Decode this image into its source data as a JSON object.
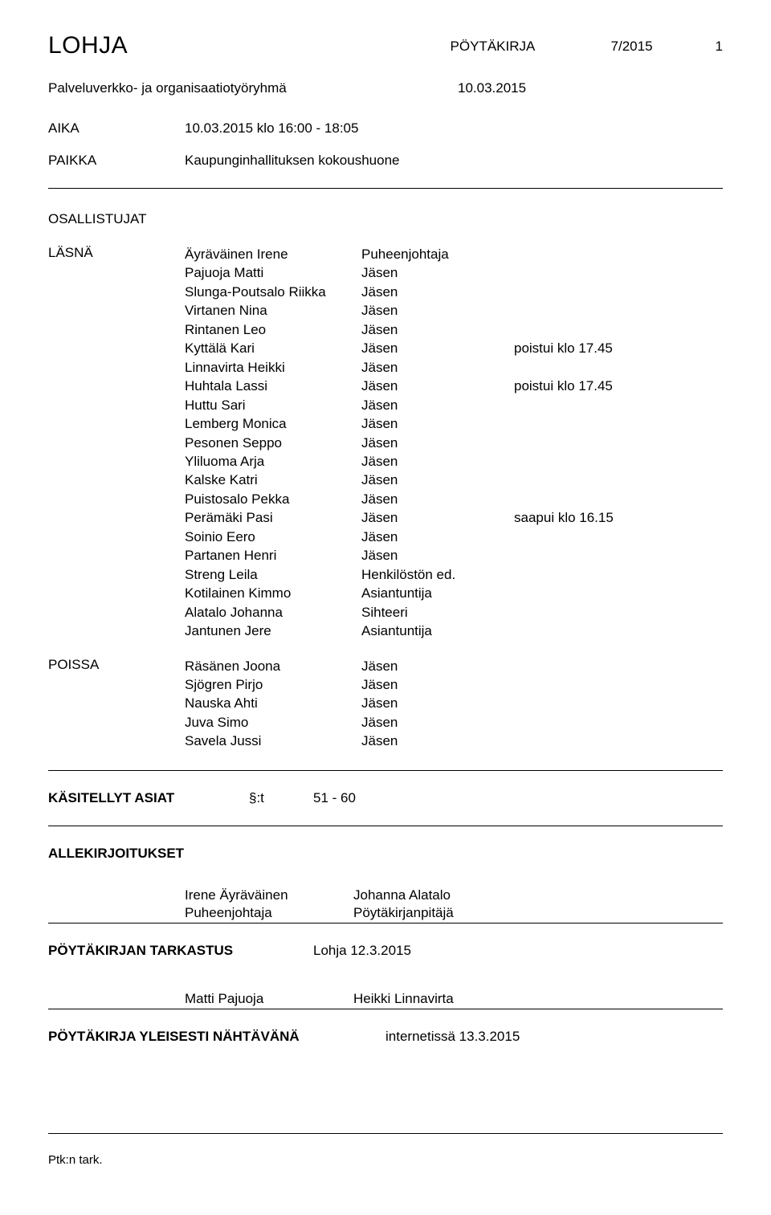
{
  "header": {
    "org": "LOHJA",
    "doc_type": "PÖYTÄKIRJA",
    "doc_number": "7/2015",
    "page": "1"
  },
  "sub": {
    "group": "Palveluverkko- ja organisaatiotyöryhmä",
    "group_date": "10.03.2015"
  },
  "meta": {
    "aika_label": "AIKA",
    "aika_value": "10.03.2015 klo 16:00 - 18:05",
    "paikka_label": "PAIKKA",
    "paikka_value": "Kaupunginhallituksen kokoushuone"
  },
  "participants_heading": "OSALLISTUJAT",
  "present": {
    "label": "LÄSNÄ",
    "rows": [
      {
        "name": "Äyräväinen Irene",
        "role": "Puheenjohtaja",
        "note": ""
      },
      {
        "name": "Pajuoja Matti",
        "role": "Jäsen",
        "note": ""
      },
      {
        "name": "Slunga-Poutsalo Riikka",
        "role": "Jäsen",
        "note": ""
      },
      {
        "name": "Virtanen Nina",
        "role": "Jäsen",
        "note": ""
      },
      {
        "name": "Rintanen Leo",
        "role": "Jäsen",
        "note": ""
      },
      {
        "name": "Kyttälä Kari",
        "role": "Jäsen",
        "note": "poistui klo 17.45"
      },
      {
        "name": "Linnavirta Heikki",
        "role": "Jäsen",
        "note": ""
      },
      {
        "name": "Huhtala Lassi",
        "role": "Jäsen",
        "note": "poistui klo 17.45"
      },
      {
        "name": "Huttu Sari",
        "role": "Jäsen",
        "note": ""
      },
      {
        "name": "Lemberg Monica",
        "role": "Jäsen",
        "note": ""
      },
      {
        "name": "Pesonen Seppo",
        "role": "Jäsen",
        "note": ""
      },
      {
        "name": "Yliluoma Arja",
        "role": "Jäsen",
        "note": ""
      },
      {
        "name": "Kalske Katri",
        "role": "Jäsen",
        "note": ""
      },
      {
        "name": "Puistosalo Pekka",
        "role": "Jäsen",
        "note": ""
      },
      {
        "name": "Perämäki Pasi",
        "role": "Jäsen",
        "note": "saapui klo 16.15"
      },
      {
        "name": "Soinio Eero",
        "role": "Jäsen",
        "note": ""
      },
      {
        "name": "Partanen Henri",
        "role": "Jäsen",
        "note": ""
      },
      {
        "name": "Streng Leila",
        "role": "Henkilöstön ed.",
        "note": ""
      },
      {
        "name": "Kotilainen Kimmo",
        "role": "Asiantuntija",
        "note": ""
      },
      {
        "name": "Alatalo Johanna",
        "role": "Sihteeri",
        "note": ""
      },
      {
        "name": "Jantunen Jere",
        "role": "Asiantuntija",
        "note": ""
      }
    ]
  },
  "absent": {
    "label": "POISSA",
    "rows": [
      {
        "name": "Räsänen Joona",
        "role": "Jäsen",
        "note": ""
      },
      {
        "name": "Sjögren Pirjo",
        "role": "Jäsen",
        "note": ""
      },
      {
        "name": "Nauska Ahti",
        "role": "Jäsen",
        "note": ""
      },
      {
        "name": "Juva Simo",
        "role": "Jäsen",
        "note": ""
      },
      {
        "name": "Savela Jussi",
        "role": "Jäsen",
        "note": ""
      }
    ]
  },
  "items": {
    "label": "KÄSITELLYT ASIAT",
    "symbol": "§:t",
    "range": "51 - 60"
  },
  "signatures": {
    "heading": "ALLEKIRJOITUKSET",
    "left_name": "Irene Äyräväinen",
    "left_role": "Puheenjohtaja",
    "right_name": "Johanna Alatalo",
    "right_role": "Pöytäkirjanpitäjä"
  },
  "verification": {
    "label": "PÖYTÄKIRJAN TARKASTUS",
    "value": "Lohja 12.3.2015",
    "signer_left": "Matti Pajuoja",
    "signer_right": "Heikki Linnavirta"
  },
  "publicity": {
    "label": "PÖYTÄKIRJA YLEISESTI NÄHTÄVÄNÄ",
    "value": "internetissä 13.3.2015"
  },
  "footer": "Ptk:n tark."
}
